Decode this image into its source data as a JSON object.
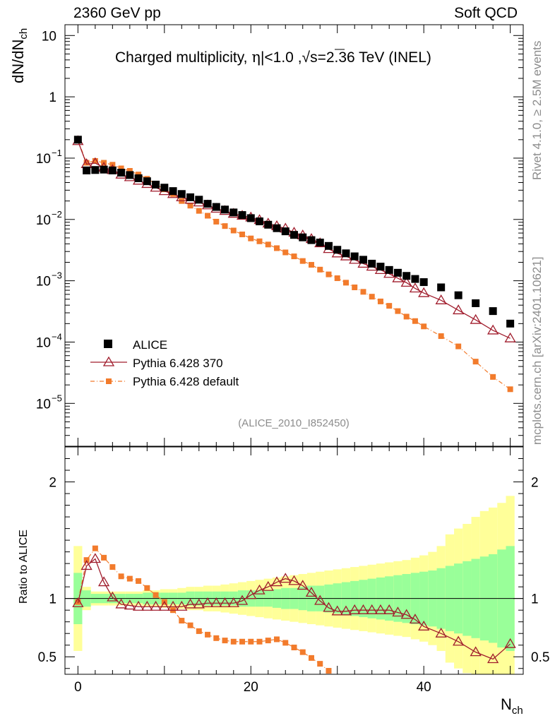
{
  "header": {
    "left": "2360 GeV pp",
    "right": "Soft QCD"
  },
  "side": {
    "rivet": "Rivet 4.1.0, ≥ 2.5M events",
    "mcplots": "mcplots.cern.ch [arXiv:2401.10621]"
  },
  "chart_data": {
    "type": "scatter",
    "title_parts": {
      "a": "Charged multiplicity, ",
      "eta": "η",
      "b": "|<1.0 ,",
      "c": "s=2.36 TeV (INEL)"
    },
    "analysis_id": "(ALICE_2010_I852450)",
    "ylabel": {
      "main": "dN/dN",
      "sub": "ch"
    },
    "xlabel": {
      "main": "N",
      "sub": "ch"
    },
    "ratio_ylabel": "Ratio to ALICE",
    "xlim": [
      -1.5,
      51.5
    ],
    "ylim": [
      2e-06,
      15
    ],
    "ratio_ylim": [
      0.35,
      2.3
    ],
    "x_ticks": [
      0,
      20,
      40
    ],
    "y_ticks": [
      {
        "v": 10,
        "label": "10"
      },
      {
        "v": 1,
        "label": "1"
      },
      {
        "v": 0.1,
        "label": "10",
        "exp": "−1"
      },
      {
        "v": 0.01,
        "label": "10",
        "exp": "−2"
      },
      {
        "v": 0.001,
        "label": "10",
        "exp": "−3"
      },
      {
        "v": 0.0001,
        "label": "10",
        "exp": "−4"
      },
      {
        "v": 1e-05,
        "label": "10",
        "exp": "−5"
      }
    ],
    "ratio_ticks": [
      {
        "v": 0.5,
        "label": "0.5"
      },
      {
        "v": 1,
        "label": "1"
      },
      {
        "v": 2,
        "label": "2"
      }
    ],
    "legend": [
      "ALICE",
      "Pythia 6.428 370",
      "Pythia 6.428 default"
    ],
    "series": [
      {
        "name": "ALICE",
        "color": "#000000",
        "x": [
          0,
          1,
          2,
          3,
          4,
          5,
          6,
          7,
          8,
          9,
          10,
          11,
          12,
          13,
          14,
          15,
          16,
          17,
          18,
          19,
          20,
          21,
          22,
          23,
          24,
          25,
          26,
          27,
          28,
          29,
          30,
          31,
          32,
          33,
          34,
          35,
          36,
          37,
          38,
          39,
          40,
          42,
          44,
          46,
          48,
          50
        ],
        "y": [
          0.2,
          0.063,
          0.064,
          0.065,
          0.063,
          0.058,
          0.053,
          0.047,
          0.042,
          0.037,
          0.033,
          0.029,
          0.026,
          0.023,
          0.021,
          0.018,
          0.016,
          0.0145,
          0.013,
          0.0118,
          0.0105,
          0.0093,
          0.0082,
          0.0072,
          0.0064,
          0.0056,
          0.0051,
          0.0046,
          0.0042,
          0.0037,
          0.0032,
          0.0028,
          0.0025,
          0.0022,
          0.0019,
          0.0017,
          0.0015,
          0.00135,
          0.0012,
          0.00107,
          0.00095,
          0.00078,
          0.00058,
          0.00043,
          0.00032,
          0.0002
        ]
      },
      {
        "name": "Pythia 6.428 370",
        "color": "#a01c2c",
        "x": [
          0,
          1,
          2,
          3,
          4,
          5,
          6,
          7,
          8,
          9,
          10,
          11,
          12,
          13,
          14,
          15,
          16,
          17,
          18,
          19,
          20,
          21,
          22,
          23,
          24,
          25,
          26,
          27,
          28,
          29,
          30,
          31,
          32,
          33,
          34,
          35,
          36,
          37,
          38,
          39,
          40,
          42,
          44,
          46,
          48,
          50
        ],
        "y": [
          0.19,
          0.08,
          0.083,
          0.07,
          0.064,
          0.054,
          0.049,
          0.043,
          0.038,
          0.033,
          0.029,
          0.026,
          0.023,
          0.021,
          0.019,
          0.017,
          0.015,
          0.0138,
          0.0124,
          0.0115,
          0.0108,
          0.0098,
          0.0086,
          0.0078,
          0.0071,
          0.0061,
          0.0055,
          0.0048,
          0.0041,
          0.0033,
          0.0028,
          0.0025,
          0.0022,
          0.0019,
          0.0017,
          0.0015,
          0.0013,
          0.0011,
          0.00093,
          0.00075,
          0.00063,
          0.00048,
          0.00033,
          0.00023,
          0.000155,
          0.000115
        ]
      },
      {
        "name": "Pythia 6.428 default",
        "color": "#f27b2c",
        "x": [
          0,
          1,
          2,
          3,
          4,
          5,
          6,
          7,
          8,
          9,
          10,
          11,
          12,
          13,
          14,
          15,
          16,
          17,
          18,
          19,
          20,
          21,
          22,
          23,
          24,
          25,
          26,
          27,
          28,
          29,
          30,
          31,
          32,
          33,
          34,
          35,
          36,
          37,
          38,
          39,
          40,
          42,
          44,
          46,
          48,
          50
        ],
        "y": [
          0.195,
          0.084,
          0.09,
          0.084,
          0.078,
          0.068,
          0.062,
          0.054,
          0.046,
          0.038,
          0.031,
          0.026,
          0.02,
          0.0168,
          0.0138,
          0.0115,
          0.0092,
          0.0078,
          0.0066,
          0.0057,
          0.0049,
          0.0044,
          0.0039,
          0.0034,
          0.0029,
          0.0025,
          0.0021,
          0.00182,
          0.00152,
          0.00127,
          0.0011,
          0.00093,
          0.00078,
          0.00066,
          0.00055,
          0.00046,
          0.00039,
          0.00032,
          0.00026,
          0.00022,
          0.00018,
          0.000125,
          8.5e-05,
          4.8e-05,
          2.7e-05,
          1.7e-05
        ]
      }
    ],
    "ratio_series": [
      {
        "name": "Pythia 6.428 370",
        "x": [
          0,
          1,
          2,
          3,
          4,
          5,
          6,
          7,
          8,
          9,
          10,
          11,
          12,
          13,
          14,
          15,
          16,
          17,
          18,
          19,
          20,
          21,
          22,
          23,
          24,
          25,
          26,
          27,
          28,
          29,
          30,
          31,
          32,
          33,
          34,
          35,
          36,
          37,
          38,
          39,
          40,
          42,
          44,
          46,
          48,
          50
        ],
        "y": [
          0.96,
          1.28,
          1.34,
          1.14,
          1.01,
          0.95,
          0.94,
          0.93,
          0.93,
          0.93,
          0.93,
          0.93,
          0.93,
          0.95,
          0.95,
          0.96,
          0.96,
          0.96,
          0.96,
          0.98,
          1.03,
          1.07,
          1.1,
          1.14,
          1.17,
          1.15,
          1.11,
          1.05,
          0.98,
          0.92,
          0.89,
          0.89,
          0.9,
          0.9,
          0.9,
          0.9,
          0.9,
          0.88,
          0.86,
          0.82,
          0.76,
          0.7,
          0.63,
          0.54,
          0.48,
          0.61
        ]
      },
      {
        "name": "Pythia 6.428 default",
        "x": [
          0,
          1,
          2,
          3,
          4,
          5,
          6,
          7,
          8,
          9,
          10,
          11,
          12,
          13,
          14,
          15,
          16,
          17,
          18,
          19,
          20,
          21,
          22,
          23,
          24,
          25,
          26,
          27,
          28,
          29
        ],
        "y": [
          0.97,
          1.33,
          1.43,
          1.35,
          1.27,
          1.19,
          1.17,
          1.15,
          1.09,
          1.03,
          0.97,
          0.9,
          0.81,
          0.77,
          0.72,
          0.69,
          0.66,
          0.64,
          0.63,
          0.63,
          0.63,
          0.63,
          0.64,
          0.65,
          0.62,
          0.58,
          0.54,
          0.49,
          0.44,
          0.38
        ]
      }
    ],
    "bands": {
      "x": [
        0,
        1,
        2,
        3,
        4,
        5,
        6,
        7,
        8,
        9,
        10,
        11,
        12,
        13,
        14,
        15,
        16,
        17,
        18,
        19,
        20,
        21,
        22,
        23,
        24,
        25,
        26,
        27,
        28,
        29,
        30,
        31,
        32,
        33,
        34,
        35,
        36,
        37,
        38,
        39,
        40,
        41,
        42,
        43,
        44,
        45,
        46,
        47,
        48,
        49,
        50
      ],
      "green": [
        0.22,
        0.07,
        0.04,
        0.04,
        0.04,
        0.04,
        0.04,
        0.04,
        0.05,
        0.05,
        0.05,
        0.05,
        0.05,
        0.06,
        0.06,
        0.06,
        0.06,
        0.06,
        0.06,
        0.07,
        0.07,
        0.07,
        0.07,
        0.08,
        0.09,
        0.09,
        0.1,
        0.11,
        0.11,
        0.12,
        0.13,
        0.14,
        0.15,
        0.16,
        0.17,
        0.18,
        0.19,
        0.2,
        0.21,
        0.22,
        0.23,
        0.24,
        0.26,
        0.28,
        0.3,
        0.32,
        0.34,
        0.36,
        0.38,
        0.42,
        0.45
      ],
      "yellow": [
        0.45,
        0.1,
        0.06,
        0.06,
        0.06,
        0.06,
        0.06,
        0.06,
        0.07,
        0.07,
        0.08,
        0.08,
        0.09,
        0.1,
        0.1,
        0.11,
        0.11,
        0.12,
        0.13,
        0.14,
        0.15,
        0.16,
        0.17,
        0.18,
        0.19,
        0.2,
        0.21,
        0.22,
        0.23,
        0.24,
        0.25,
        0.26,
        0.27,
        0.28,
        0.29,
        0.3,
        0.31,
        0.32,
        0.33,
        0.35,
        0.37,
        0.4,
        0.45,
        0.55,
        0.6,
        0.64,
        0.7,
        0.75,
        0.78,
        0.82,
        0.88
      ]
    }
  }
}
